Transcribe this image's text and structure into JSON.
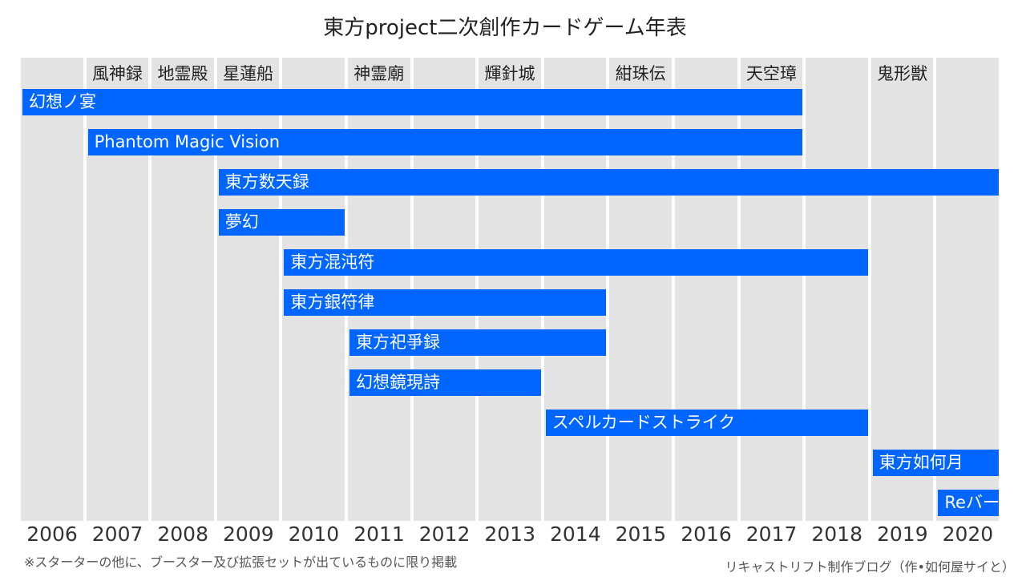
{
  "chart_data": {
    "type": "bar",
    "title": "東方project二次創作カードゲーム年表",
    "x_range": [
      2006,
      2020
    ],
    "years": [
      "2006",
      "2007",
      "2008",
      "2009",
      "2010",
      "2011",
      "2012",
      "2013",
      "2014",
      "2015",
      "2016",
      "2017",
      "2018",
      "2019",
      "2020"
    ],
    "main_games": [
      {
        "label": "風神録",
        "year": 2007
      },
      {
        "label": "地霊殿",
        "year": 2008
      },
      {
        "label": "星蓮船",
        "year": 2009
      },
      {
        "label": "神霊廟",
        "year": 2011
      },
      {
        "label": "輝針城",
        "year": 2013
      },
      {
        "label": "紺珠伝",
        "year": 2015
      },
      {
        "label": "天空璋",
        "year": 2017
      },
      {
        "label": "鬼形獣",
        "year": 2019
      }
    ],
    "series": [
      {
        "name": "幻想ノ宴",
        "start": 2006,
        "end": 2017
      },
      {
        "name": "Phantom Magic Vision",
        "start": 2007,
        "end": 2017
      },
      {
        "name": "東方数天録",
        "start": 2009,
        "end": 2020
      },
      {
        "name": "夢幻",
        "start": 2009,
        "end": 2010
      },
      {
        "name": "東方混沌符",
        "start": 2010,
        "end": 2018
      },
      {
        "name": "東方銀符律",
        "start": 2010,
        "end": 2014
      },
      {
        "name": "東方祀爭録",
        "start": 2011,
        "end": 2014
      },
      {
        "name": "幻想鏡現詩",
        "start": 2011,
        "end": 2013
      },
      {
        "name": "スペルカードストライク",
        "start": 2014,
        "end": 2018
      },
      {
        "name": "東方如何月",
        "start": 2019,
        "end": 2020
      },
      {
        "name": "Reバース",
        "start": 2020,
        "end": 2020
      }
    ],
    "colors": {
      "bar": "#0066ff",
      "column": "#e3e3e3"
    },
    "footnote": "※スターターの他に、ブースター及び拡張セットが出ているものに限り掲載",
    "credit": "リキャストリフト制作ブログ（作•如何屋サイと）"
  }
}
